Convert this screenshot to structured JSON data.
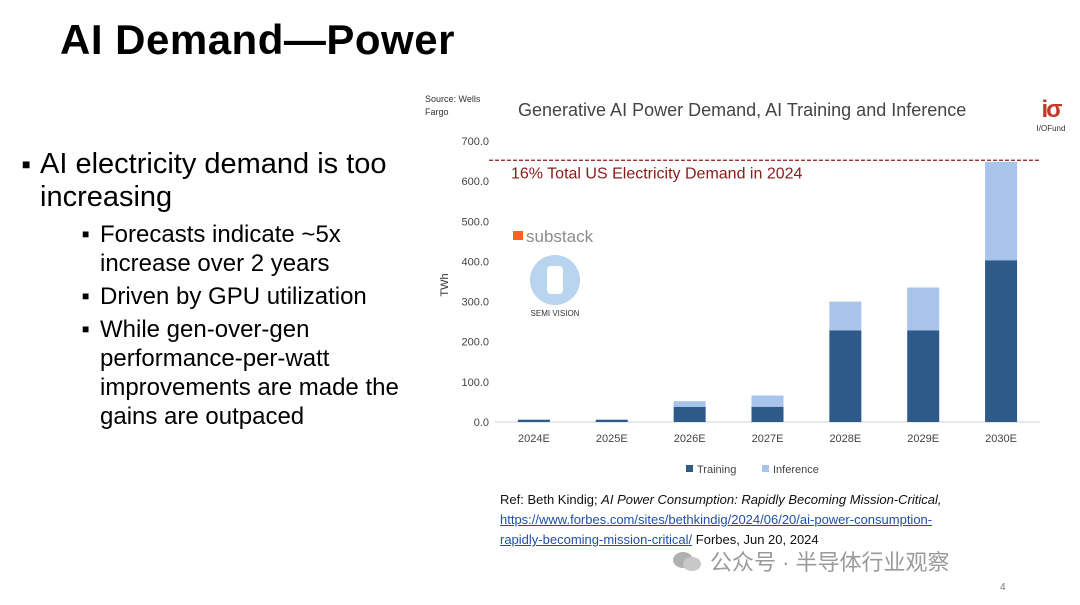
{
  "slide": {
    "title": "AI Demand—Power",
    "page_number": "4"
  },
  "bullets": {
    "main": "AI electricity demand is too increasing",
    "subs": [
      "Forecasts indicate ~5x increase over 2 years",
      "Driven by GPU utilization",
      "While gen-over-gen performance-per-watt improvements are made the gains are outpaced"
    ]
  },
  "source_note": "Source: Wells Fargo",
  "logo": {
    "mark": "iσ",
    "name": "I/OFund"
  },
  "substack": {
    "label": "substack",
    "badge": "SEMI VISION"
  },
  "colors": {
    "training": "#2e5a8a",
    "inference": "#a9c4ea",
    "reference_line": "#8b1a1a",
    "link": "#1f4fa8"
  },
  "chart_data": {
    "type": "bar",
    "stacked": true,
    "title": "Generative AI Power Demand, AI Training and Inference",
    "ylabel": "TWh",
    "xlabel": "",
    "ylim": [
      0,
      700
    ],
    "yticks": [
      "0.0",
      "100.0",
      "200.0",
      "300.0",
      "400.0",
      "500.0",
      "600.0",
      "700.0"
    ],
    "categories": [
      "2024E",
      "2025E",
      "2026E",
      "2027E",
      "2028E",
      "2029E",
      "2030E"
    ],
    "series": [
      {
        "name": "Training",
        "values": [
          5,
          5,
          38,
          38,
          228,
          228,
          403
        ]
      },
      {
        "name": "Inference",
        "values": [
          2,
          2,
          14,
          28,
          72,
          107,
          245
        ]
      }
    ],
    "reference_line": {
      "value": 652,
      "label": "16% Total US Electricity Demand in 2024"
    },
    "legend": "bottom-center",
    "grid": false
  },
  "reference": {
    "prefix": "Ref: Beth Kindig; ",
    "article_title": "AI Power Consumption: Rapidly Becoming Mission-Critical,",
    "url_line1": "https://www.forbes.com/sites/bethkindig/2024/06/20/ai-power-consumption-",
    "url_line2": "rapidly-becoming-mission-critical/",
    "suffix": " Forbes, Jun 20, 2024"
  },
  "watermark": "公众号 · 半导体行业观察"
}
